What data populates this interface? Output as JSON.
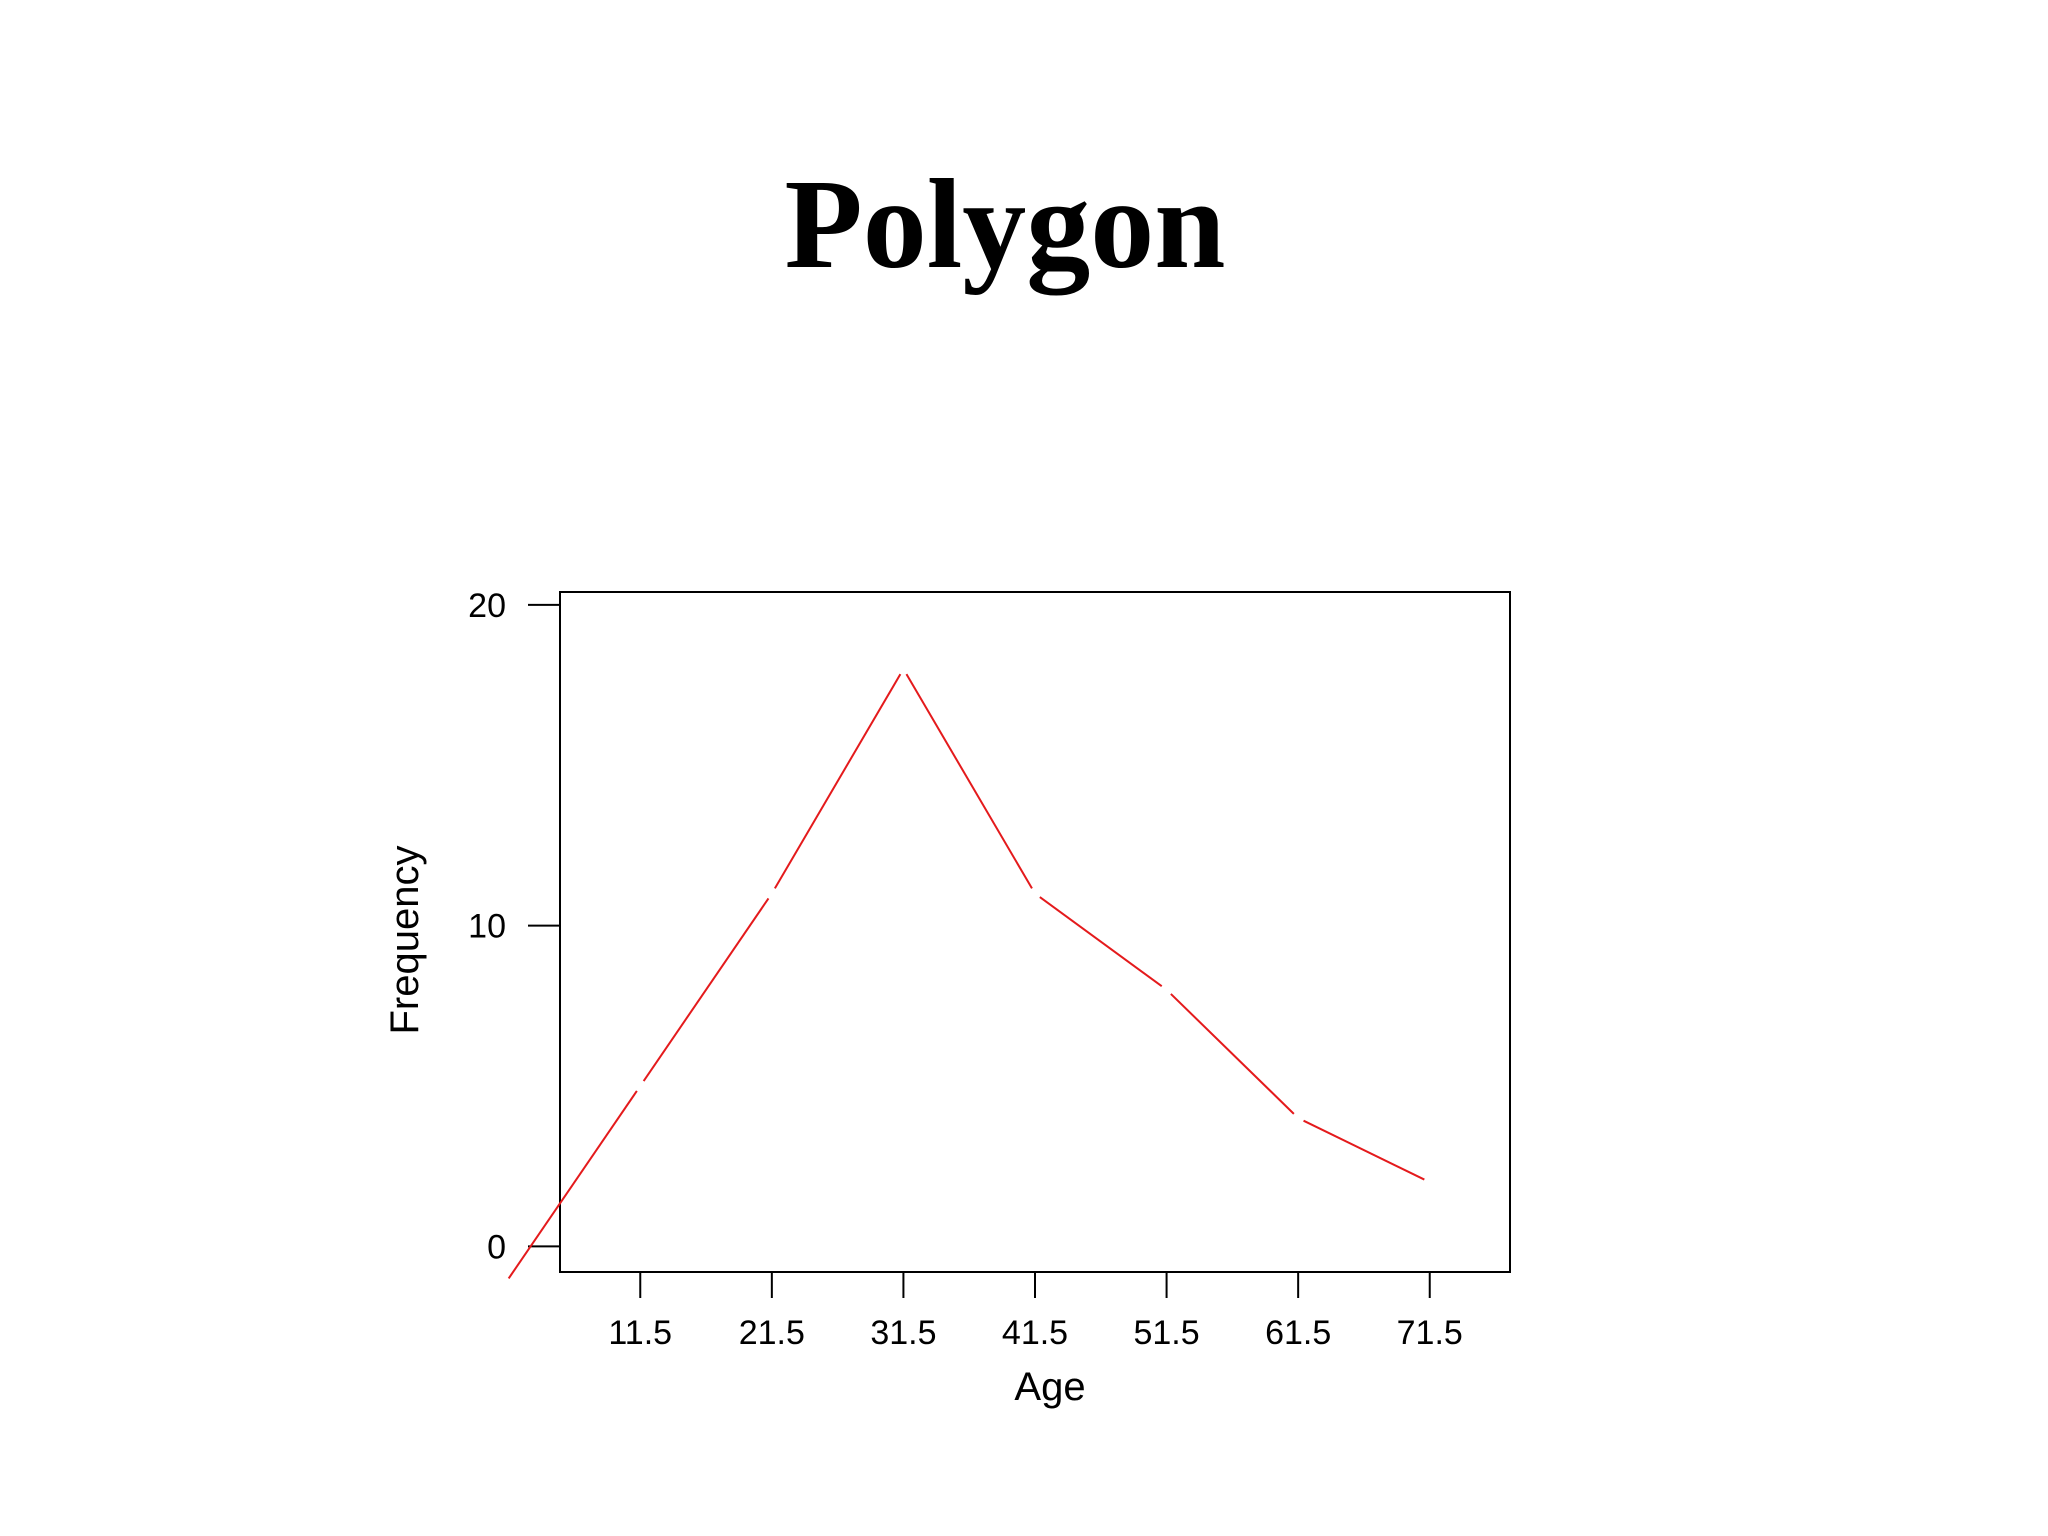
{
  "page": {
    "title": "Polygon"
  },
  "chart_data": {
    "type": "line",
    "title": "",
    "xlabel": "Age",
    "ylabel": "Frequency",
    "x_ticks": [
      "11.5",
      "21.5",
      "31.5",
      "41.5",
      "51.5",
      "61.5",
      "71.5"
    ],
    "y_ticks": [
      "0",
      "10",
      "20"
    ],
    "xlim": [
      5.4,
      77.6
    ],
    "ylim": [
      -0.8,
      20.4
    ],
    "grid": false,
    "legend": "none",
    "series": [
      {
        "x": [
          1.5,
          11.5,
          21.5,
          31.5,
          41.5,
          51.5,
          61.5,
          71.5
        ],
        "y": [
          -1,
          5,
          11,
          18,
          11,
          8,
          4,
          2
        ],
        "color": "#e41a1c",
        "style": "segments-with-gaps"
      }
    ]
  }
}
